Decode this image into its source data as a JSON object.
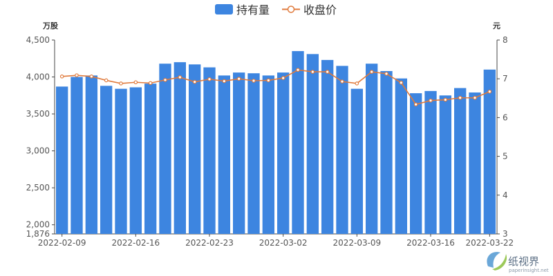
{
  "chart_data": {
    "type": "bar",
    "x": [
      "2022-02-09",
      "2022-02-10",
      "2022-02-11",
      "2022-02-14",
      "2022-02-15",
      "2022-02-16",
      "2022-02-17",
      "2022-02-18",
      "2022-02-21",
      "2022-02-22",
      "2022-02-23",
      "2022-02-24",
      "2022-02-25",
      "2022-02-28",
      "2022-03-01",
      "2022-03-02",
      "2022-03-03",
      "2022-03-04",
      "2022-03-07",
      "2022-03-08",
      "2022-03-09",
      "2022-03-10",
      "2022-03-11",
      "2022-03-14",
      "2022-03-15",
      "2022-03-16",
      "2022-03-17",
      "2022-03-18",
      "2022-03-21",
      "2022-03-22"
    ],
    "x_tick_labels": [
      "2022-02-09",
      "2022-02-16",
      "2022-02-23",
      "2022-03-02",
      "2022-03-09",
      "2022-03-16",
      "2022-03-22"
    ],
    "series": [
      {
        "name": "持有量",
        "type": "bar",
        "axis": "left",
        "color": "#3d85e0",
        "values": [
          3870,
          4000,
          4020,
          3880,
          3840,
          3860,
          3910,
          4180,
          4200,
          4170,
          4130,
          4020,
          4060,
          4050,
          4020,
          4060,
          4350,
          4310,
          4230,
          4150,
          3840,
          4180,
          4080,
          3980,
          3780,
          3810,
          3750,
          3850,
          3790,
          4100
        ]
      },
      {
        "name": "收盘价",
        "type": "line",
        "axis": "right",
        "color": "#e07a3c",
        "values": [
          7.06,
          7.09,
          7.06,
          6.96,
          6.88,
          6.91,
          6.89,
          6.97,
          7.04,
          6.92,
          6.99,
          6.94,
          7.0,
          6.95,
          6.96,
          7.02,
          7.23,
          7.18,
          7.18,
          6.93,
          6.88,
          7.18,
          7.13,
          6.9,
          6.34,
          6.44,
          6.46,
          6.51,
          6.51,
          6.67
        ]
      }
    ],
    "y_left": {
      "unit": "万股",
      "min": 1876,
      "max": 4500,
      "ticks": [
        1876,
        2000,
        2500,
        3000,
        3500,
        4000,
        4500
      ]
    },
    "y_right": {
      "unit": "元",
      "min": 3,
      "max": 8,
      "ticks": [
        3,
        4,
        5,
        6,
        7,
        8
      ]
    },
    "legend_position": "top-center",
    "grid": false
  },
  "watermark": {
    "text": "纸视界",
    "subtext": "paperinsight.net"
  }
}
